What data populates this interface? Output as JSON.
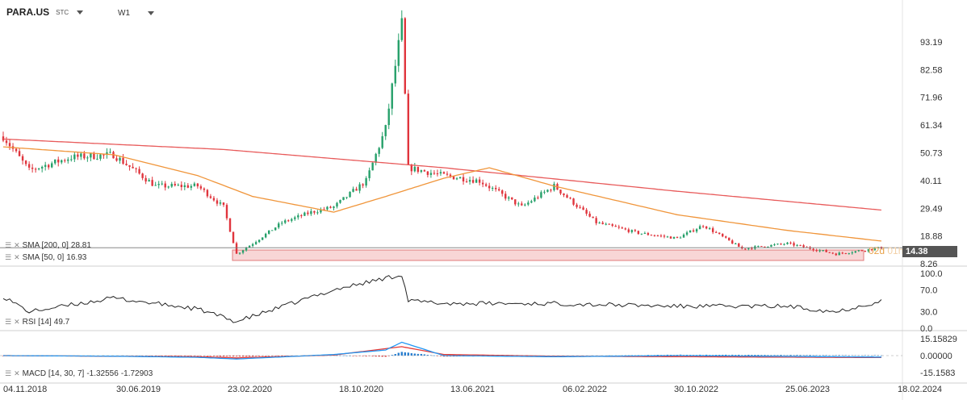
{
  "header": {
    "symbol": "PARA.US",
    "symbol_suffix": "STC",
    "timeframe": "W1"
  },
  "indicators": {
    "sma200_label": "SMA [200, 0]",
    "sma200_value": "28.81",
    "sma50_label": "SMA [50, 0]",
    "sma50_value": "16.93",
    "rsi_label": "RSI [14]",
    "rsi_value": "49.7",
    "macd_label": "MACD [14, 30, 7]",
    "macd_value1": "-1.32556",
    "macd_value2": "-1.72903"
  },
  "last_price": "14.38",
  "countdown_main": "02d",
  "countdown_dim": "01h",
  "colors": {
    "up": "#26a06a",
    "down": "#e0353d",
    "sma50": "#f0953a",
    "sma200": "#e85a5a",
    "zone_fill": "#f8d6d6",
    "zone_stroke": "#e07b7b",
    "macd_line": "#2196f3",
    "signal_line": "#e53935",
    "hist_pos": "#2a7fd0",
    "hist_neg": "#d83a3a"
  },
  "chart_data": [
    {
      "type": "candlestick",
      "title": "PARA.US W1",
      "x_ticks": [
        "04.11.2018",
        "30.06.2019",
        "23.02.2020",
        "18.10.2020",
        "13.06.2021",
        "06.02.2022",
        "30.10.2022",
        "25.06.2023",
        "18.02.2024"
      ],
      "y_ticks": [
        "93.19",
        "82.58",
        "71.96",
        "61.34",
        "50.73",
        "40.11",
        "29.49",
        "18.88",
        "8.26"
      ],
      "ylim": [
        8.26,
        103.8
      ],
      "price_keypoints": [
        {
          "x": "04.11.2018",
          "y": 57
        },
        {
          "x": "30.12.2018",
          "y": 44
        },
        {
          "x": "31.03.2019",
          "y": 49
        },
        {
          "x": "30.06.2019",
          "y": 50
        },
        {
          "x": "29.09.2019",
          "y": 38
        },
        {
          "x": "29.12.2019",
          "y": 38
        },
        {
          "x": "23.02.2020",
          "y": 30
        },
        {
          "x": "22.03.2020",
          "y": 12
        },
        {
          "x": "26.04.2020",
          "y": 16
        },
        {
          "x": "28.06.2020",
          "y": 24
        },
        {
          "x": "30.08.2020",
          "y": 28
        },
        {
          "x": "18.10.2020",
          "y": 30
        },
        {
          "x": "27.12.2020",
          "y": 40
        },
        {
          "x": "07.02.2021",
          "y": 60
        },
        {
          "x": "14.03.2021",
          "y": 100
        },
        {
          "x": "28.03.2021",
          "y": 45
        },
        {
          "x": "13.06.2021",
          "y": 42
        },
        {
          "x": "29.08.2021",
          "y": 40
        },
        {
          "x": "28.11.2021",
          "y": 30
        },
        {
          "x": "06.02.2022",
          "y": 38
        },
        {
          "x": "08.05.2022",
          "y": 24
        },
        {
          "x": "07.08.2022",
          "y": 20
        },
        {
          "x": "30.10.2022",
          "y": 18
        },
        {
          "x": "25.12.2022",
          "y": 23
        },
        {
          "x": "19.03.2023",
          "y": 14
        },
        {
          "x": "25.06.2023",
          "y": 16
        },
        {
          "x": "08.10.2023",
          "y": 12
        },
        {
          "x": "14.01.2024",
          "y": 14.38
        }
      ],
      "sma50_keypoints": [
        {
          "x": "04.11.2018",
          "y": 53
        },
        {
          "x": "30.06.2019",
          "y": 50
        },
        {
          "x": "29.12.2019",
          "y": 42
        },
        {
          "x": "26.04.2020",
          "y": 34
        },
        {
          "x": "18.10.2020",
          "y": 28
        },
        {
          "x": "07.02.2021",
          "y": 34
        },
        {
          "x": "13.06.2021",
          "y": 41
        },
        {
          "x": "19.09.2021",
          "y": 45
        },
        {
          "x": "06.02.2022",
          "y": 38
        },
        {
          "x": "30.10.2022",
          "y": 27
        },
        {
          "x": "25.06.2023",
          "y": 21
        },
        {
          "x": "14.01.2024",
          "y": 16.93
        }
      ],
      "sma200_keypoints": [
        {
          "x": "04.11.2018",
          "y": 56
        },
        {
          "x": "23.02.2020",
          "y": 52
        },
        {
          "x": "13.06.2021",
          "y": 45
        },
        {
          "x": "30.10.2022",
          "y": 36
        },
        {
          "x": "14.01.2024",
          "y": 28.81
        }
      ],
      "support_zone": {
        "low": 9.5,
        "high": 13.5
      }
    },
    {
      "type": "line",
      "title": "RSI [14]",
      "y_ticks": [
        "100.0",
        "70.0",
        "30.0",
        "0.0"
      ],
      "ylim": [
        0,
        100
      ],
      "keypoints": [
        {
          "x": "04.11.2018",
          "y": 58
        },
        {
          "x": "30.12.2018",
          "y": 30
        },
        {
          "x": "30.06.2019",
          "y": 55
        },
        {
          "x": "29.12.2019",
          "y": 35
        },
        {
          "x": "22.03.2020",
          "y": 12
        },
        {
          "x": "18.10.2020",
          "y": 70
        },
        {
          "x": "14.03.2021",
          "y": 98
        },
        {
          "x": "28.03.2021",
          "y": 50
        },
        {
          "x": "13.06.2021",
          "y": 45
        },
        {
          "x": "06.02.2022",
          "y": 45
        },
        {
          "x": "30.10.2022",
          "y": 40
        },
        {
          "x": "25.06.2023",
          "y": 40
        },
        {
          "x": "08.10.2023",
          "y": 30
        },
        {
          "x": "14.01.2024",
          "y": 49.7
        }
      ]
    },
    {
      "type": "line",
      "title": "MACD [14, 30, 7]",
      "y_ticks": [
        "15.15829",
        "0.00000",
        "-15.1583"
      ],
      "ylim": [
        -15.1583,
        15.15829
      ],
      "macd_keypoints": [
        {
          "x": "04.11.2018",
          "y": 0
        },
        {
          "x": "30.06.2019",
          "y": -0.5
        },
        {
          "x": "29.12.2019",
          "y": -1.5
        },
        {
          "x": "22.03.2020",
          "y": -3
        },
        {
          "x": "18.10.2020",
          "y": 1
        },
        {
          "x": "07.02.2021",
          "y": 5
        },
        {
          "x": "14.03.2021",
          "y": 12
        },
        {
          "x": "13.06.2021",
          "y": 0
        },
        {
          "x": "06.02.2022",
          "y": -1
        },
        {
          "x": "30.10.2022",
          "y": 0
        },
        {
          "x": "14.01.2024",
          "y": -1.32556
        }
      ],
      "signal_keypoints": [
        {
          "x": "04.11.2018",
          "y": 0
        },
        {
          "x": "29.12.2019",
          "y": -1
        },
        {
          "x": "22.03.2020",
          "y": -2
        },
        {
          "x": "18.10.2020",
          "y": 0.5
        },
        {
          "x": "14.03.2021",
          "y": 8
        },
        {
          "x": "13.06.2021",
          "y": 1
        },
        {
          "x": "06.02.2022",
          "y": -0.5
        },
        {
          "x": "14.01.2024",
          "y": -1.72903
        }
      ]
    }
  ]
}
